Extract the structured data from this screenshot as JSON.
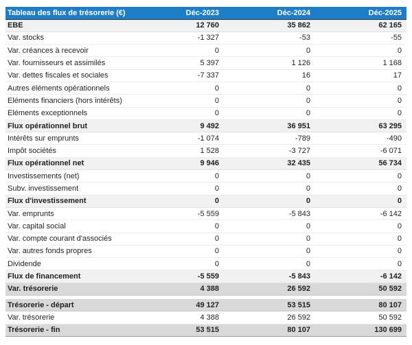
{
  "colors": {
    "header_bg": "#1e7dc7",
    "header_text": "#ffffff",
    "subtotal_row_bg": "#f1f1f1",
    "total_row_bg": "#d9d9d9",
    "row_text": "#1f1f1f"
  },
  "chart_data": {
    "type": "table",
    "title": "Tableau des flux de trésorerie (€)",
    "columns": [
      "Déc-2023",
      "Déc-2024",
      "Déc-2025"
    ],
    "currency": "€",
    "number_format": "thousands separated by space",
    "rows": [
      {
        "label": "EBE",
        "style": "subtotal",
        "values": [
          12760,
          35862,
          62165
        ]
      },
      {
        "label": "Var. stocks",
        "style": "normal",
        "values": [
          -1327,
          -53,
          -55
        ]
      },
      {
        "label": "Var. créances à recevoir",
        "style": "normal",
        "values": [
          0,
          0,
          0
        ]
      },
      {
        "label": "Var. fournisseurs et assimilés",
        "style": "normal",
        "values": [
          5397,
          1126,
          1168
        ]
      },
      {
        "label": "Var. dettes fiscales et sociales",
        "style": "normal",
        "values": [
          -7337,
          16,
          17
        ]
      },
      {
        "label": "Autres éléments opérationnels",
        "style": "normal",
        "values": [
          0,
          0,
          0
        ]
      },
      {
        "label": "Eléments financiers (hors intérêts)",
        "style": "normal",
        "values": [
          0,
          0,
          0
        ]
      },
      {
        "label": "Eléments exceptionnels",
        "style": "normal",
        "values": [
          0,
          0,
          0
        ]
      },
      {
        "label": "Flux opérationnel brut",
        "style": "subtotal",
        "values": [
          9492,
          36951,
          63295
        ]
      },
      {
        "label": "Intérêts sur emprunts",
        "style": "normal",
        "values": [
          -1074,
          -789,
          -490
        ]
      },
      {
        "label": "Impôt sociétés",
        "style": "normal",
        "values": [
          1528,
          -3727,
          -6071
        ]
      },
      {
        "label": "Flux opérationnel net",
        "style": "subtotal",
        "values": [
          9946,
          32435,
          56734
        ]
      },
      {
        "label": "Investissements (net)",
        "style": "normal",
        "values": [
          0,
          0,
          0
        ]
      },
      {
        "label": "Subv. investissement",
        "style": "normal",
        "values": [
          0,
          0,
          0
        ]
      },
      {
        "label": "Flux d'investissement",
        "style": "subtotal",
        "values": [
          0,
          0,
          0
        ]
      },
      {
        "label": "Var. emprunts",
        "style": "normal",
        "values": [
          -5559,
          -5843,
          -6142
        ]
      },
      {
        "label": "Var. capital social",
        "style": "normal",
        "values": [
          0,
          0,
          0
        ]
      },
      {
        "label": "Var. compte courant d'associés",
        "style": "normal",
        "values": [
          0,
          0,
          0
        ]
      },
      {
        "label": "Var. autres fonds propres",
        "style": "normal",
        "values": [
          0,
          0,
          0
        ]
      },
      {
        "label": "Dividende",
        "style": "normal",
        "values": [
          0,
          0,
          0
        ]
      },
      {
        "label": "Flux de financement",
        "style": "subtotal",
        "values": [
          -5559,
          -5843,
          -6142
        ]
      },
      {
        "label": "Var. trésorerie",
        "style": "total",
        "values": [
          4388,
          26592,
          50592
        ]
      },
      {
        "label": "Trésorerie - départ",
        "style": "total",
        "spacer_before": true,
        "values": [
          49127,
          53515,
          80107
        ]
      },
      {
        "label": "Var. trésorerie",
        "style": "normal",
        "values": [
          4388,
          26592,
          50592
        ]
      },
      {
        "label": "Trésorerie - fin",
        "style": "total",
        "values": [
          53515,
          80107,
          130699
        ]
      }
    ]
  }
}
